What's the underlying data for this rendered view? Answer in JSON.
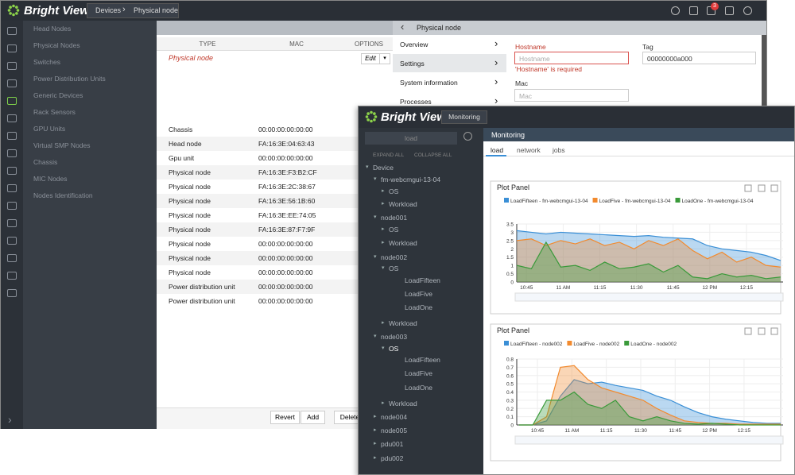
{
  "back_window": {
    "logo": "Bright View",
    "breadcrumb": [
      "Devices",
      "Physical node"
    ],
    "badge": "3",
    "nav": [
      "Head Nodes",
      "Physical Nodes",
      "Switches",
      "Power Distribution Units",
      "Generic Devices",
      "Rack Sensors",
      "GPU Units",
      "Virtual SMP Nodes",
      "Chassis",
      "MIC Nodes",
      "Nodes Identification"
    ],
    "table": {
      "columns": [
        "TYPE",
        "MAC",
        "OPTIONS"
      ],
      "selected_row": "Physical node",
      "edit": "Edit",
      "rows": [
        [
          "Chassis",
          "00:00:00:00:00:00"
        ],
        [
          "Head node",
          "FA:16:3E:04:63:43"
        ],
        [
          "Gpu unit",
          "00:00:00:00:00:00"
        ],
        [
          "Physical node",
          "FA:16:3E:F3:B2:CF"
        ],
        [
          "Physical node",
          "FA:16:3E:2C:38:67"
        ],
        [
          "Physical node",
          "FA:16:3E:56:1B:60"
        ],
        [
          "Physical node",
          "FA:16:3E:EE:74:05"
        ],
        [
          "Physical node",
          "FA:16:3E:87:F7:9F"
        ],
        [
          "Physical node",
          "00:00:00:00:00:00"
        ],
        [
          "Physical node",
          "00:00:00:00:00:00"
        ],
        [
          "Physical node",
          "00:00:00:00:00:00"
        ],
        [
          "Power distribution unit",
          "00:00:00:00:00:00"
        ],
        [
          "Power distribution unit",
          "00:00:00:00:00:00"
        ]
      ]
    },
    "buttons": [
      "Revert",
      "Add",
      "Delete"
    ],
    "detail": {
      "title": "Physical node",
      "menu": [
        "Overview",
        "Settings",
        "System information",
        "Processes"
      ],
      "hostname_label": "Hostname",
      "hostname_placeholder": "Hostname",
      "hostname_error": "'Hostname' is required",
      "tag_label": "Tag",
      "tag_value": "00000000a000",
      "mac_label": "Mac",
      "mac_placeholder": "Mac"
    }
  },
  "front_window": {
    "logo": "Bright View",
    "button": "Monitoring",
    "search": "load",
    "expand": "EXPAND ALL",
    "collapse": "COLLAPSE ALL",
    "tree": [
      "Device",
      "fm-webcmgui-13-04",
      "OS",
      "Workload",
      "node001",
      "OS",
      "Workload",
      "node002",
      "OS",
      "LoadFifteen",
      "LoadFive",
      "LoadOne",
      "Workload",
      "node003",
      "OS",
      "LoadFifteen",
      "LoadFive",
      "LoadOne",
      "Workload",
      "node004",
      "node005",
      "pdu001",
      "pdu002"
    ],
    "panel_title": "Monitoring",
    "tabs": [
      "load",
      "network",
      "jobs"
    ]
  },
  "charts": [
    {
      "type": "area",
      "title": "Plot Panel",
      "x": [
        641,
        647,
        653,
        659,
        665,
        671,
        677,
        683,
        689,
        695,
        701,
        707,
        713,
        719,
        725,
        731,
        737,
        743,
        749
      ],
      "xlim": [
        641,
        750
      ],
      "xticks": [
        {
          "value": 645,
          "label": "10:45"
        },
        {
          "value": 660,
          "label": "11 AM"
        },
        {
          "value": 675,
          "label": "11:15"
        },
        {
          "value": 690,
          "label": "11:30"
        },
        {
          "value": 705,
          "label": "11:45"
        },
        {
          "value": 720,
          "label": "12 PM"
        },
        {
          "value": 735,
          "label": "12:15"
        }
      ],
      "ylim": [
        0,
        3.5
      ],
      "yticks": [
        0,
        0.5,
        1,
        1.5,
        2,
        2.5,
        3,
        3.5
      ],
      "grid": true,
      "series": [
        {
          "name": "LoadFifteen - fm-webcmgui-13-04",
          "color": "#3a8fd6",
          "values": [
            3.1,
            3.0,
            2.9,
            3.0,
            2.95,
            2.9,
            2.85,
            2.8,
            2.75,
            2.8,
            2.7,
            2.65,
            2.6,
            2.2,
            2.0,
            1.9,
            1.8,
            1.6,
            1.3
          ]
        },
        {
          "name": "LoadFive - fm-webcmgui-13-04",
          "color": "#f28a2e",
          "values": [
            2.5,
            2.6,
            2.2,
            2.5,
            2.3,
            2.6,
            2.2,
            2.4,
            2.0,
            2.5,
            2.2,
            2.6,
            1.9,
            1.4,
            1.8,
            1.2,
            1.5,
            1.0,
            0.9
          ]
        },
        {
          "name": "LoadOne - fm-webcmgui-13-04",
          "color": "#3a9a3a",
          "values": [
            1.0,
            0.8,
            2.4,
            0.9,
            1.0,
            0.7,
            1.2,
            0.8,
            0.9,
            1.1,
            0.6,
            1.0,
            0.3,
            0.2,
            0.5,
            0.3,
            0.4,
            0.2,
            0.3
          ]
        }
      ]
    },
    {
      "type": "area",
      "title": "Plot Panel",
      "x": [
        637,
        643,
        649,
        655,
        661,
        667,
        673,
        679,
        685,
        691,
        697,
        703,
        709,
        715,
        721,
        727,
        733,
        739,
        745,
        751
      ],
      "xlim": [
        636,
        752
      ],
      "xticks": [
        {
          "value": 645,
          "label": "10:45"
        },
        {
          "value": 660,
          "label": "11 AM"
        },
        {
          "value": 675,
          "label": "11:15"
        },
        {
          "value": 690,
          "label": "11:30"
        },
        {
          "value": 705,
          "label": "11:45"
        },
        {
          "value": 720,
          "label": "12 PM"
        },
        {
          "value": 735,
          "label": "12:15"
        }
      ],
      "ylim": [
        0,
        0.8
      ],
      "yticks": [
        0,
        0.1,
        0.2,
        0.3,
        0.4,
        0.5,
        0.6,
        0.7,
        0.8
      ],
      "grid": true,
      "series": [
        {
          "name": "LoadFifteen - node002",
          "color": "#3a8fd6",
          "values": [
            0,
            0,
            0.05,
            0.35,
            0.55,
            0.5,
            0.52,
            0.48,
            0.45,
            0.42,
            0.35,
            0.3,
            0.22,
            0.15,
            0.1,
            0.07,
            0.05,
            0.03,
            0.02,
            0.02
          ]
        },
        {
          "name": "LoadFive - node002",
          "color": "#f28a2e",
          "values": [
            0,
            0,
            0.1,
            0.7,
            0.72,
            0.55,
            0.45,
            0.4,
            0.35,
            0.3,
            0.2,
            0.12,
            0.05,
            0.03,
            0.02,
            0.02,
            0.01,
            0.01,
            0.01,
            0.01
          ]
        },
        {
          "name": "LoadOne - node002",
          "color": "#3a9a3a",
          "values": [
            0,
            0,
            0.3,
            0.3,
            0.4,
            0.25,
            0.2,
            0.3,
            0.1,
            0.05,
            0.1,
            0.05,
            0.02,
            0.01,
            0.02,
            0.01,
            0,
            0,
            0,
            0
          ]
        }
      ]
    }
  ]
}
